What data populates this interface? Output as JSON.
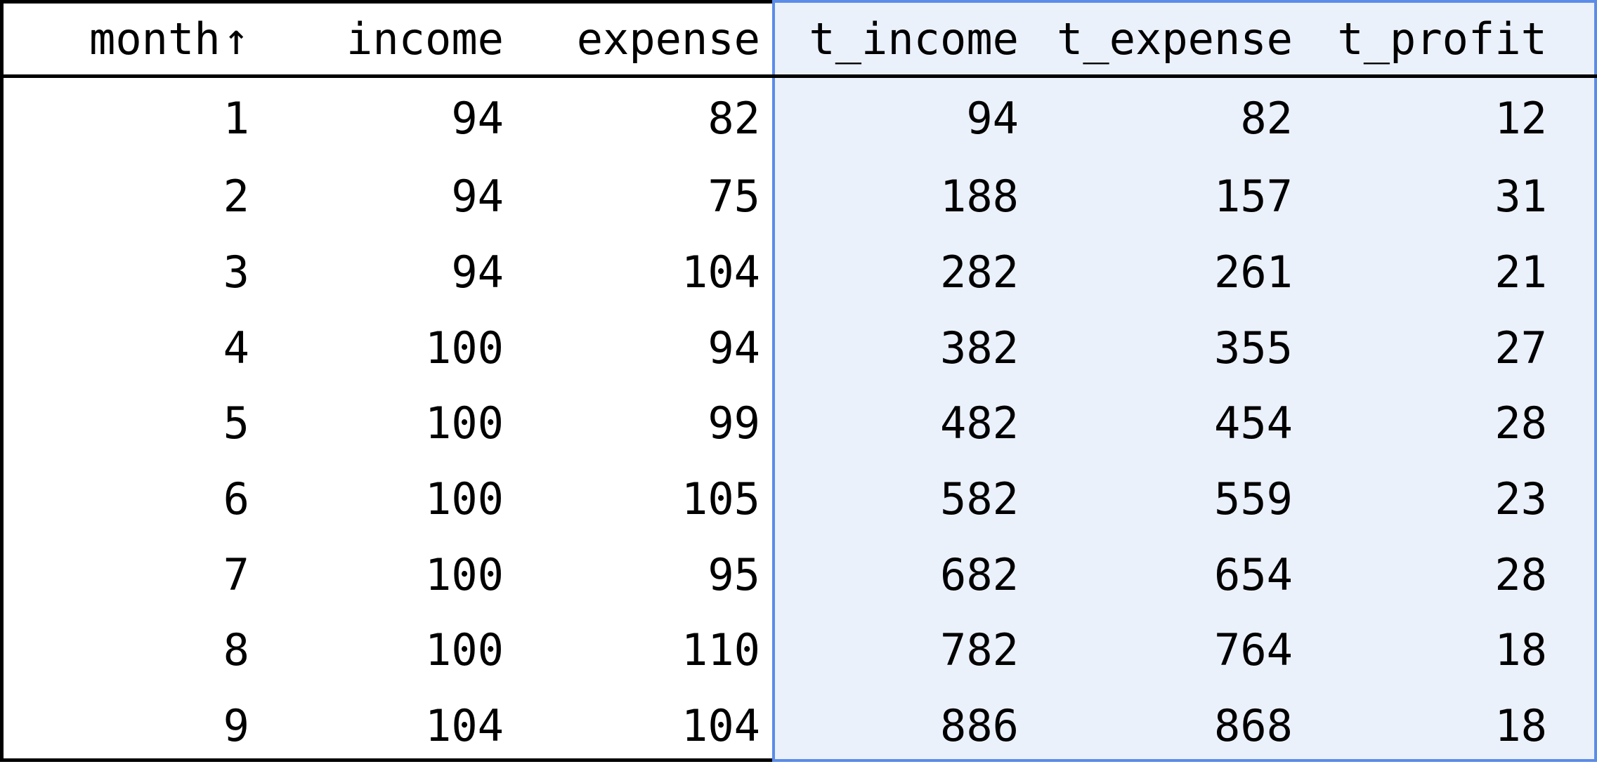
{
  "table": {
    "columns": [
      {
        "label": "month",
        "sort_indicator": "↑"
      },
      {
        "label": "income"
      },
      {
        "label": "expense"
      },
      {
        "label": "t_income"
      },
      {
        "label": "t_expense"
      },
      {
        "label": "t_profit"
      }
    ],
    "selected_columns": [
      "t_income",
      "t_expense",
      "t_profit"
    ],
    "rows": [
      [
        "1",
        "94",
        "82",
        "94",
        "82",
        "12"
      ],
      [
        "2",
        "94",
        "75",
        "188",
        "157",
        "31"
      ],
      [
        "3",
        "94",
        "104",
        "282",
        "261",
        "21"
      ],
      [
        "4",
        "100",
        "94",
        "382",
        "355",
        "27"
      ],
      [
        "5",
        "100",
        "99",
        "482",
        "454",
        "28"
      ],
      [
        "6",
        "100",
        "105",
        "582",
        "559",
        "23"
      ],
      [
        "7",
        "100",
        "95",
        "682",
        "654",
        "28"
      ],
      [
        "8",
        "100",
        "110",
        "782",
        "764",
        "18"
      ],
      [
        "9",
        "104",
        "104",
        "886",
        "868",
        "18"
      ]
    ]
  },
  "colors": {
    "selection_border": "#5b8ce8",
    "selection_fill": "#ebf1fb",
    "border": "#000000"
  }
}
